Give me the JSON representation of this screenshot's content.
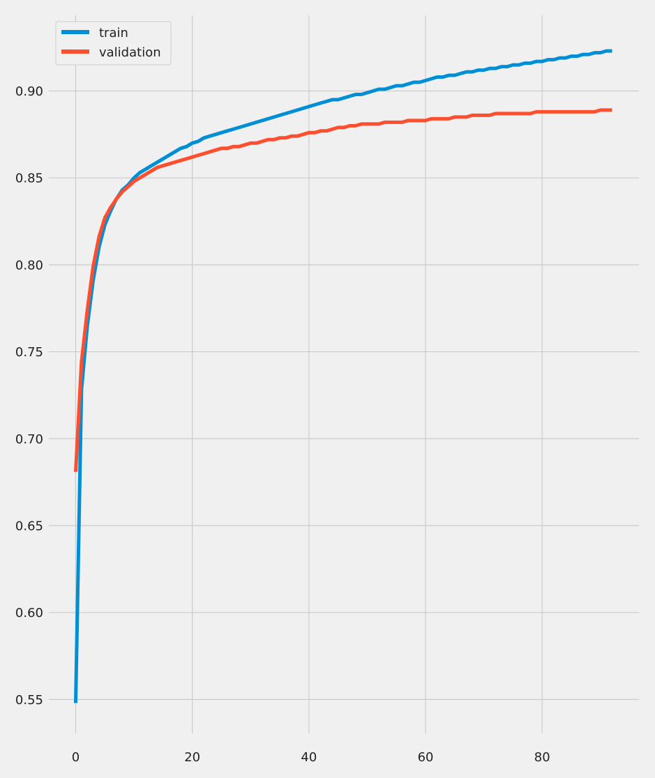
{
  "chart_data": {
    "type": "line",
    "title": "",
    "xlabel": "",
    "ylabel": "",
    "xlim": [
      -4.6,
      96.6
    ],
    "ylim": [
      0.5305,
      0.9435
    ],
    "x_ticks": [
      0,
      20,
      40,
      60,
      80
    ],
    "x_tick_labels": [
      "0",
      "20",
      "40",
      "60",
      "80"
    ],
    "y_ticks": [
      0.55,
      0.6,
      0.65,
      0.7,
      0.75,
      0.8,
      0.85,
      0.9
    ],
    "y_tick_labels": [
      "0.55",
      "0.60",
      "0.65",
      "0.70",
      "0.75",
      "0.80",
      "0.85",
      "0.90"
    ],
    "grid": true,
    "legend_position": "upper-left",
    "series": [
      {
        "name": "train",
        "color": "#008fd5",
        "x_start": 0,
        "x_step": 1,
        "values": [
          0.548,
          0.728,
          0.765,
          0.791,
          0.81,
          0.823,
          0.831,
          0.838,
          0.843,
          0.846,
          0.85,
          0.853,
          0.855,
          0.857,
          0.859,
          0.861,
          0.863,
          0.865,
          0.867,
          0.868,
          0.87,
          0.871,
          0.873,
          0.874,
          0.875,
          0.876,
          0.877,
          0.878,
          0.879,
          0.88,
          0.881,
          0.882,
          0.883,
          0.884,
          0.885,
          0.886,
          0.887,
          0.888,
          0.889,
          0.89,
          0.891,
          0.892,
          0.893,
          0.894,
          0.895,
          0.895,
          0.896,
          0.897,
          0.898,
          0.898,
          0.899,
          0.9,
          0.901,
          0.901,
          0.902,
          0.903,
          0.903,
          0.904,
          0.905,
          0.905,
          0.906,
          0.907,
          0.908,
          0.908,
          0.909,
          0.909,
          0.91,
          0.911,
          0.911,
          0.912,
          0.912,
          0.913,
          0.913,
          0.914,
          0.914,
          0.915,
          0.915,
          0.916,
          0.916,
          0.917,
          0.917,
          0.918,
          0.918,
          0.919,
          0.919,
          0.92,
          0.92,
          0.921,
          0.921,
          0.922,
          0.922,
          0.923,
          0.923
        ]
      },
      {
        "name": "validation",
        "color": "#fc4f30",
        "x_start": 0,
        "x_step": 1,
        "values": [
          0.681,
          0.744,
          0.774,
          0.799,
          0.816,
          0.827,
          0.833,
          0.838,
          0.842,
          0.845,
          0.848,
          0.85,
          0.852,
          0.854,
          0.856,
          0.857,
          0.858,
          0.859,
          0.86,
          0.861,
          0.862,
          0.863,
          0.864,
          0.865,
          0.866,
          0.867,
          0.867,
          0.868,
          0.868,
          0.869,
          0.87,
          0.87,
          0.871,
          0.872,
          0.872,
          0.873,
          0.873,
          0.874,
          0.874,
          0.875,
          0.876,
          0.876,
          0.877,
          0.877,
          0.878,
          0.879,
          0.879,
          0.88,
          0.88,
          0.881,
          0.881,
          0.881,
          0.881,
          0.882,
          0.882,
          0.882,
          0.882,
          0.883,
          0.883,
          0.883,
          0.883,
          0.884,
          0.884,
          0.884,
          0.884,
          0.885,
          0.885,
          0.885,
          0.886,
          0.886,
          0.886,
          0.886,
          0.887,
          0.887,
          0.887,
          0.887,
          0.887,
          0.887,
          0.887,
          0.888,
          0.888,
          0.888,
          0.888,
          0.888,
          0.888,
          0.888,
          0.888,
          0.888,
          0.888,
          0.888,
          0.889,
          0.889,
          0.889
        ]
      }
    ]
  }
}
